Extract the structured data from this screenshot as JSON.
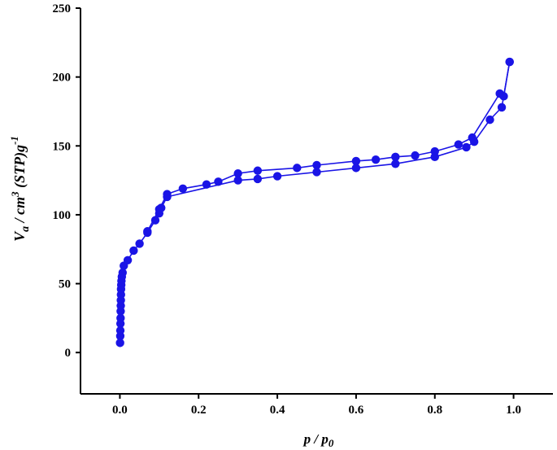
{
  "chart_data": {
    "type": "line",
    "title": "",
    "xlabel": {
      "main": "p / p",
      "sub": "0"
    },
    "ylabel": {
      "main": "V",
      "sub": "a",
      "mid": " / cm",
      "sup": "3",
      "tail": " (STP)g",
      "sup2": "-1"
    },
    "xlim": [
      -0.1,
      1.1
    ],
    "ylim": [
      -30,
      250
    ],
    "xticks": [
      "0.0",
      "0.2",
      "0.4",
      "0.6",
      "0.8",
      "1.0"
    ],
    "xtick_values": [
      0.0,
      0.2,
      0.4,
      0.6,
      0.8,
      1.0
    ],
    "yticks": [
      "0",
      "50",
      "100",
      "150",
      "200",
      "250"
    ],
    "ytick_values": [
      0,
      50,
      100,
      150,
      200,
      250
    ],
    "grid": false,
    "color": "#1a14e6",
    "series": [
      {
        "x": [
          0.0005,
          0.001,
          0.0012,
          0.0015,
          0.0018,
          0.002,
          0.0023,
          0.0025,
          0.0028,
          0.003,
          0.0035,
          0.004,
          0.005,
          0.007,
          0.01,
          0.02,
          0.035,
          0.05,
          0.07,
          0.09,
          0.1,
          0.105,
          0.12,
          0.3,
          0.35,
          0.4,
          0.5,
          0.6,
          0.7,
          0.8,
          0.88,
          0.9,
          0.94,
          0.97,
          0.99
        ],
        "y": [
          7,
          12,
          16,
          21,
          25,
          30,
          34,
          38,
          42,
          46,
          49,
          52,
          55,
          58,
          63,
          67,
          74,
          79,
          87,
          96,
          101,
          105,
          113,
          125,
          126,
          128,
          131,
          134,
          137,
          142,
          149,
          153,
          169,
          178,
          211
        ]
      },
      {
        "x": [
          0.99,
          0.975,
          0.965,
          0.895,
          0.86,
          0.8,
          0.75,
          0.7,
          0.65,
          0.6,
          0.5,
          0.45,
          0.35,
          0.3,
          0.25,
          0.22,
          0.16,
          0.12,
          0.1,
          0.07
        ],
        "y": [
          211,
          186,
          188,
          156,
          151,
          146,
          143,
          142,
          140,
          139,
          136,
          134,
          132,
          130,
          124,
          122,
          119,
          115,
          104,
          88
        ]
      }
    ]
  }
}
